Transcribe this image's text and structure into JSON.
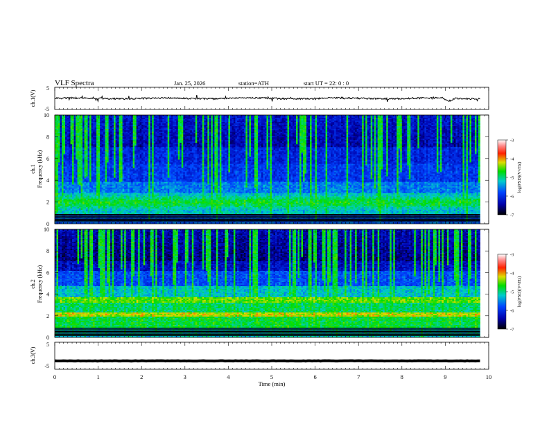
{
  "header": {
    "title": "VLF  Spectra",
    "date": "Jan. 25, 2026",
    "station": "station=ATH",
    "start": "start  UT  =   22: 0  : 0"
  },
  "chart_data": [
    {
      "type": "line",
      "panel": "ch1-waveform",
      "ylabel": "ch.1(V)",
      "ylim": [
        -5,
        5
      ],
      "yticks": [
        "5",
        "-5"
      ],
      "xlim": [
        0,
        10
      ],
      "series": [
        {
          "values_note_hidden": true
        }
      ]
    },
    {
      "type": "heatmap",
      "panel": "ch1-spectrogram",
      "ylabel_top": "ch.1",
      "ylabel": "Frequency (kHz)",
      "ylim": [
        0,
        10
      ],
      "yticks": [
        "0",
        "2",
        "4",
        "6",
        "8",
        "10"
      ],
      "xlim": [
        0,
        10
      ],
      "colorbar": {
        "label": "log(PSD)(V²/Hz)",
        "range": [
          -7,
          -3
        ],
        "ticks": [
          "-3",
          "-4",
          "-5",
          "-6",
          "-7"
        ]
      }
    },
    {
      "type": "heatmap",
      "panel": "ch2-spectrogram",
      "ylabel_top": "ch.2",
      "ylabel": "Frequency (kHz)",
      "ylim": [
        0,
        10
      ],
      "yticks": [
        "0",
        "2",
        "4",
        "6",
        "8",
        "10"
      ],
      "xlim": [
        0,
        10
      ],
      "colorbar": {
        "label": "log(PSD)(V²/Hz)",
        "range": [
          -7,
          -3
        ],
        "ticks": [
          "-3",
          "-4",
          "-5",
          "-6",
          "-7"
        ]
      }
    },
    {
      "type": "line",
      "panel": "ch3-waveform",
      "ylabel": "ch.3(V)",
      "ylim": [
        -5,
        5
      ],
      "yticks": [
        "5",
        "-5"
      ],
      "xlim": [
        0,
        10
      ],
      "xlabel": "Time  (min)",
      "xticks": [
        "0",
        "1",
        "2",
        "3",
        "4",
        "5",
        "6",
        "7",
        "8",
        "9",
        "10"
      ]
    }
  ]
}
